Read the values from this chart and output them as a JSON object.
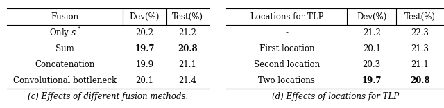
{
  "left_table": {
    "headers": [
      "Fusion",
      "Dev(%)",
      "Test(%)"
    ],
    "rows": [
      [
        "Only s*",
        "20.2",
        "21.2"
      ],
      [
        "Sum",
        "19.7",
        "20.8"
      ],
      [
        "Concatenation",
        "19.9",
        "21.1"
      ],
      [
        "Convolutional bottleneck",
        "20.1",
        "21.4"
      ]
    ],
    "bold_rows": [
      1
    ],
    "bold_cols_only": [
      1,
      2
    ],
    "caption": "(c) Effects of different fusion methods."
  },
  "right_table": {
    "headers": [
      "Locations for TLP",
      "Dev(%)",
      "Test(%)"
    ],
    "rows": [
      [
        "-",
        "21.2",
        "22.3"
      ],
      [
        "First location",
        "20.1",
        "21.3"
      ],
      [
        "Second location",
        "20.3",
        "21.1"
      ],
      [
        "Two locations",
        "19.7",
        "20.8"
      ]
    ],
    "bold_rows": [
      3
    ],
    "bold_cols_only": [
      1,
      2
    ],
    "caption": "(d) Effects of locations for TLP"
  },
  "background_color": "#ffffff",
  "text_color": "#000000",
  "font_size": 8.5,
  "caption_font_size": 8.5
}
